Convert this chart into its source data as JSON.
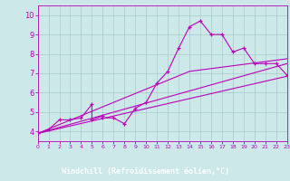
{
  "xlabel": "Windchill (Refroidissement éolien,°C)",
  "bg_color": "#cce8e8",
  "plot_bg_color": "#cce8e8",
  "line_color": "#bb00bb",
  "grid_color": "#aacccc",
  "xlabel_bg": "#6600aa",
  "xlabel_fg": "#ffffff",
  "xlim": [
    0,
    23
  ],
  "ylim": [
    3.5,
    10.5
  ],
  "xticks": [
    0,
    1,
    2,
    3,
    4,
    5,
    6,
    7,
    8,
    9,
    10,
    11,
    12,
    13,
    14,
    15,
    16,
    17,
    18,
    19,
    20,
    21,
    22,
    23
  ],
  "yticks": [
    4,
    5,
    6,
    7,
    8,
    9,
    10
  ],
  "series1_x": [
    0,
    1,
    2,
    3,
    4,
    5,
    5,
    6,
    6,
    7,
    8,
    9,
    10,
    11,
    12,
    13,
    14,
    15,
    16,
    17,
    18,
    19,
    20,
    21,
    22,
    23
  ],
  "series1_y": [
    3.9,
    4.1,
    4.6,
    4.6,
    4.7,
    5.4,
    4.6,
    4.8,
    4.7,
    4.7,
    4.4,
    5.2,
    5.5,
    6.5,
    7.1,
    8.3,
    9.4,
    9.7,
    9.0,
    9.0,
    8.1,
    8.3,
    7.5,
    7.5,
    7.5,
    6.9
  ],
  "line1_x": [
    0,
    23
  ],
  "line1_y": [
    3.9,
    6.85
  ],
  "line2_x": [
    0,
    23
  ],
  "line2_y": [
    3.9,
    7.5
  ],
  "line3_x": [
    0,
    14,
    23
  ],
  "line3_y": [
    3.9,
    7.1,
    7.75
  ]
}
